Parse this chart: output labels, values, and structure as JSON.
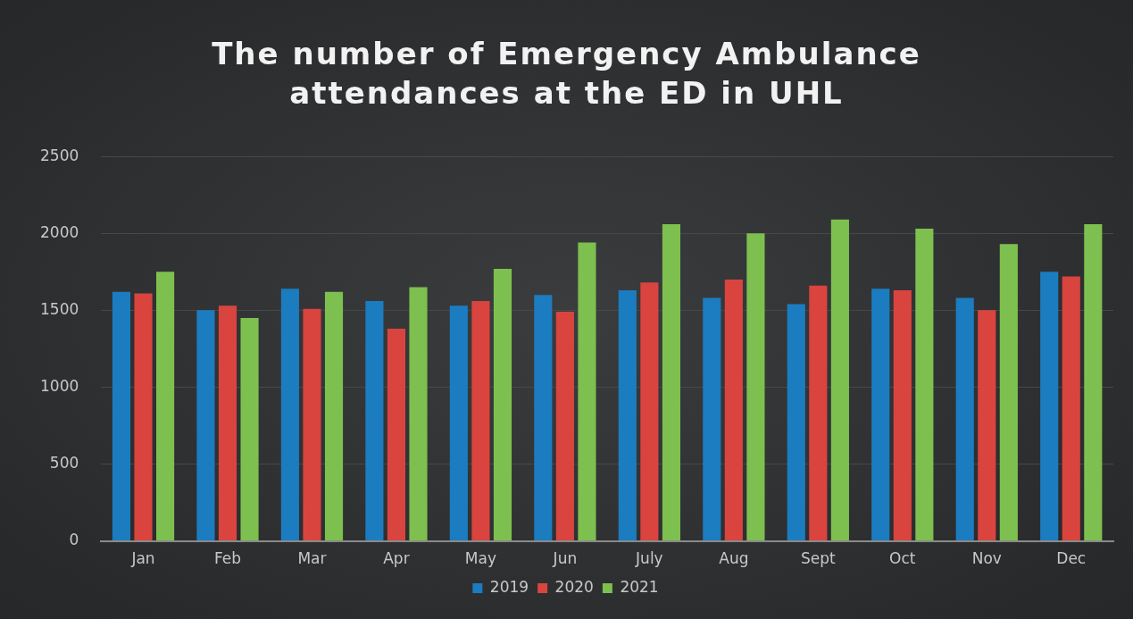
{
  "chart_data": {
    "type": "bar",
    "title": "The number of Emergency Ambulance attendances at the ED in UHL",
    "categories": [
      "Jan",
      "Feb",
      "Mar",
      "Apr",
      "May",
      "Jun",
      "July",
      "Aug",
      "Sept",
      "Oct",
      "Nov",
      "Dec"
    ],
    "series": [
      {
        "name": "2019",
        "color": "#1c7cc0",
        "values": [
          1620,
          1500,
          1640,
          1560,
          1530,
          1600,
          1630,
          1580,
          1540,
          1640,
          1580,
          1750
        ]
      },
      {
        "name": "2020",
        "color": "#d9443f",
        "values": [
          1610,
          1530,
          1510,
          1380,
          1560,
          1490,
          1680,
          1700,
          1660,
          1630,
          1500,
          1720
        ]
      },
      {
        "name": "2021",
        "color": "#7dc04f",
        "values": [
          1750,
          1450,
          1620,
          1650,
          1770,
          1940,
          2060,
          2000,
          2090,
          2030,
          1930,
          2060
        ]
      }
    ],
    "ylim": [
      0,
      2500
    ],
    "yticks": [
      0,
      500,
      1000,
      1500,
      2000,
      2500
    ],
    "grid": "y",
    "legend": "bottom"
  }
}
